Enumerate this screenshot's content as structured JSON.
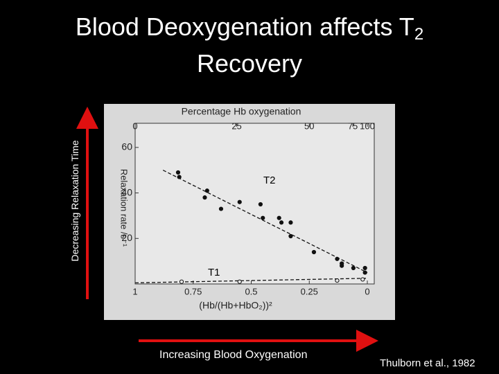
{
  "slide": {
    "title": "Blood Deoxygenation affects T",
    "title_sub": "2",
    "title_line2": "Recovery",
    "left_label": "Decreasing Relaxation Time",
    "bottom_label": "Increasing Blood Oxygenation",
    "citation": "Thulborn et al., 1982"
  },
  "chart_data": {
    "type": "scatter",
    "top_axis_label": "Percentage Hb oxygenation",
    "y_label": "Relaxation rate /s⁻¹",
    "x_label": "(Hb/(Hb+HbO₂))²",
    "xlim": [
      1,
      0
    ],
    "xticks": [
      1,
      0.75,
      0.5,
      0.25,
      0
    ],
    "x2ticks": [
      {
        "value": 1,
        "label": "0"
      },
      {
        "value": 0.5625,
        "label": "25"
      },
      {
        "value": 0.25,
        "label": "50"
      },
      {
        "value": 0.0625,
        "label": "75"
      },
      {
        "value": 0,
        "label": "100"
      }
    ],
    "ylim": [
      0,
      70
    ],
    "yticks": [
      20,
      40,
      60
    ],
    "series": [
      {
        "name": "T2",
        "color": "#111111",
        "filled": true,
        "x": [
          0.815,
          0.81,
          0.69,
          0.7,
          0.63,
          0.55,
          0.46,
          0.45,
          0.38,
          0.37,
          0.33,
          0.33,
          0.23,
          0.13,
          0.11,
          0.11,
          0.06,
          0.01,
          0.01
        ],
        "values": [
          49,
          47,
          41,
          38,
          33,
          36,
          35,
          29,
          29,
          27,
          27,
          21,
          14,
          11,
          9,
          8,
          7,
          7,
          5
        ],
        "fit": {
          "x": [
            0.88,
            0
          ],
          "values": [
            50,
            5
          ]
        }
      },
      {
        "name": "T1",
        "color": "#111111",
        "filled": false,
        "x": [
          0.8,
          0.55,
          0.13,
          0.02
        ],
        "values": [
          1,
          1,
          1.5,
          2
        ],
        "fit": {
          "x": [
            1,
            0
          ],
          "values": [
            0.5,
            2.5
          ]
        }
      }
    ]
  }
}
